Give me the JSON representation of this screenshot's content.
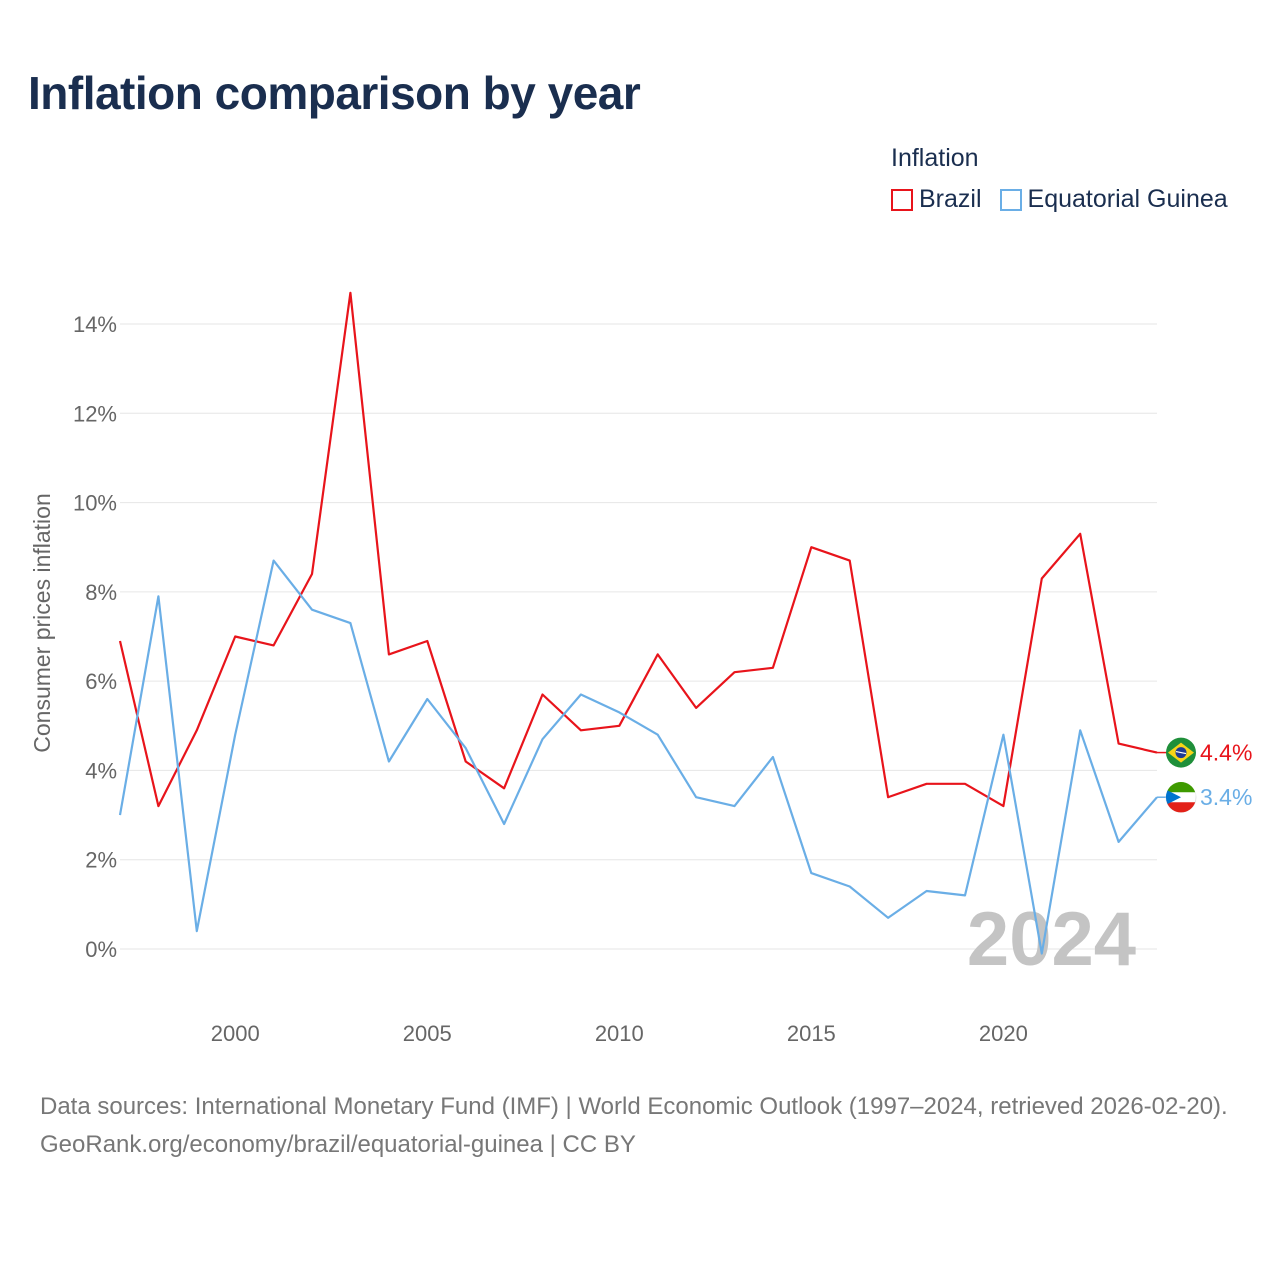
{
  "header": {
    "title": "Inflation comparison by year"
  },
  "legend": {
    "title": "Inflation",
    "items": [
      {
        "label": "Brazil",
        "color": "#e8141b"
      },
      {
        "label": "Equatorial Guinea",
        "color": "#6aaee6"
      }
    ]
  },
  "footer": {
    "source_line": "Data sources: International Monetary Fund (IMF) | World Economic Outlook (1997–2024, retrieved 2026-02-20).",
    "credit_line": "GeoRank.org/economy/brazil/equatorial-guinea | CC BY"
  },
  "chart_data": {
    "type": "line",
    "title": "Inflation comparison by year",
    "xlabel": "",
    "ylabel": "Consumer prices inflation",
    "x": [
      1997,
      1998,
      1999,
      2000,
      2001,
      2002,
      2003,
      2004,
      2005,
      2006,
      2007,
      2008,
      2009,
      2010,
      2011,
      2012,
      2013,
      2014,
      2015,
      2016,
      2017,
      2018,
      2019,
      2020,
      2021,
      2022,
      2023,
      2024
    ],
    "xlim": [
      1997,
      2024
    ],
    "ylim": [
      -1.2,
      15.5
    ],
    "x_ticks": [
      2000,
      2005,
      2010,
      2015,
      2020
    ],
    "y_ticks": [
      0,
      2,
      4,
      6,
      8,
      10,
      12,
      14
    ],
    "y_tick_labels": [
      "0%",
      "2%",
      "4%",
      "6%",
      "8%",
      "10%",
      "12%",
      "14%"
    ],
    "grid": true,
    "current_year_label": "2024",
    "series": [
      {
        "name": "Brazil",
        "color": "#e8141b",
        "end_label": "4.4%",
        "values": [
          6.9,
          3.2,
          4.9,
          7.0,
          6.8,
          8.4,
          14.7,
          6.6,
          6.9,
          4.2,
          3.6,
          5.7,
          4.9,
          5.0,
          6.6,
          5.4,
          6.2,
          6.3,
          9.0,
          8.7,
          3.4,
          3.7,
          3.7,
          3.2,
          8.3,
          9.3,
          4.6,
          4.4
        ]
      },
      {
        "name": "Equatorial Guinea",
        "color": "#6aaee6",
        "end_label": "3.4%",
        "values": [
          3.0,
          7.9,
          0.4,
          4.8,
          8.7,
          7.6,
          7.3,
          4.2,
          5.6,
          4.5,
          2.8,
          4.7,
          5.7,
          5.3,
          4.8,
          3.4,
          3.2,
          4.3,
          1.7,
          1.4,
          0.7,
          1.3,
          1.2,
          4.8,
          -0.1,
          4.9,
          2.4,
          3.4
        ]
      }
    ]
  }
}
